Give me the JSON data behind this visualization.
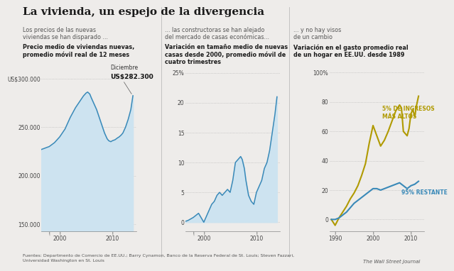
{
  "title": "La vivienda, un espejo de la divergencia",
  "title_fontsize": 11,
  "background_color": "#eeecea",
  "panel1": {
    "subtitle1": "Los precios de las nuevas\nviviendas se han disparado ...",
    "subtitle2": "Precio medio de viviendas nuevas,\npromedio móvil real de 12 meses",
    "ann_title": "Diciembre",
    "ann_val": "US$282.300",
    "yticks": [
      150000,
      200000,
      250000,
      300000
    ],
    "ytick_labels": [
      "150.000",
      "200.000",
      "250.000",
      "US$300.000"
    ],
    "xlim": [
      1996.5,
      2014.5
    ],
    "ylim": [
      143000,
      318000
    ],
    "line_color": "#3989b8",
    "fill_color": "#cde3f0",
    "x": [
      1996,
      1997,
      1997.5,
      1998,
      1998.5,
      1999,
      1999.5,
      2000,
      2000.5,
      2001,
      2001.5,
      2002,
      2002.5,
      2003,
      2003.5,
      2004,
      2004.5,
      2005,
      2005.3,
      2005.7,
      2006,
      2006.5,
      2007,
      2007.5,
      2008,
      2008.5,
      2009,
      2009.3,
      2009.7,
      2010,
      2010.5,
      2011,
      2011.3,
      2011.7,
      2012,
      2012.5,
      2013,
      2013.5,
      2013.9
    ],
    "y": [
      226000,
      228000,
      229000,
      230000,
      232000,
      234000,
      237000,
      240000,
      244000,
      248000,
      254000,
      260000,
      265000,
      270000,
      274000,
      278000,
      282000,
      285000,
      286000,
      284000,
      280000,
      274000,
      268000,
      260000,
      252000,
      244000,
      238000,
      236000,
      235000,
      236000,
      237000,
      239000,
      240000,
      242000,
      244000,
      250000,
      258000,
      268000,
      282300
    ]
  },
  "panel2": {
    "subtitle1": "... las constructoras se han alejado\ndel mercado de casas económicas...",
    "subtitle2": "Variación en tamaño medio de nuevas\ncasas desde 2000, promedio móvil de\ncuatro trimestres",
    "yticks": [
      0,
      5,
      10,
      15,
      20,
      25
    ],
    "ytick_labels": [
      "0",
      "5",
      "10",
      "15",
      "20",
      "25%"
    ],
    "xlim": [
      1996.5,
      2014.5
    ],
    "ylim": [
      -1.5,
      27
    ],
    "line_color": "#3989b8",
    "fill_color": "#cde3f0",
    "x": [
      1996,
      1997,
      1998,
      1999,
      2000,
      2000.5,
      2001,
      2001.5,
      2002,
      2002.5,
      2003,
      2003.5,
      2004,
      2004.5,
      2005,
      2005.5,
      2006,
      2006.5,
      2007,
      2007.3,
      2007.7,
      2008,
      2008.5,
      2009,
      2009.5,
      2010,
      2010.5,
      2011,
      2011.5,
      2012,
      2012.5,
      2013,
      2013.5,
      2013.9
    ],
    "y": [
      0,
      0.3,
      0.8,
      1.5,
      0,
      1,
      2,
      3,
      3.5,
      4.5,
      5,
      4.5,
      5,
      5.5,
      5,
      7,
      10,
      10.5,
      11,
      10.5,
      9,
      7,
      4.5,
      3.5,
      3,
      5,
      6,
      7,
      9,
      10,
      12,
      15,
      18,
      21
    ]
  },
  "panel3": {
    "subtitle1": "... y no hay visos\nde un cambio",
    "subtitle2": "Variación en el gasto promedio real\nde un hogar en EE.UU. desde 1989",
    "yticks": [
      0,
      20,
      40,
      60,
      80,
      100
    ],
    "ytick_labels": [
      "0",
      "20",
      "40",
      "60",
      "80",
      "100%"
    ],
    "xlim": [
      1988.5,
      2013.5
    ],
    "ylim": [
      -8,
      108
    ],
    "line_color_top": "#b09a00",
    "line_color_bot": "#3989b8",
    "label_top": "5% DE INGRESOS\nMÁS ALTOS",
    "label_bot": "95% RESTANTE",
    "x_top": [
      1989,
      1990,
      1991,
      1992,
      1993,
      1994,
      1995,
      1996,
      1997,
      1998,
      1999,
      2000,
      2001,
      2002,
      2003,
      2004,
      2005,
      2006,
      2007,
      2007.5,
      2008,
      2009,
      2009.5,
      2010,
      2010.5,
      2011,
      2011.5,
      2012
    ],
    "y_top": [
      0,
      -4,
      1,
      5,
      9,
      14,
      18,
      23,
      30,
      38,
      52,
      64,
      57,
      50,
      54,
      60,
      67,
      74,
      78,
      76,
      60,
      57,
      62,
      72,
      75,
      70,
      78,
      84
    ],
    "x_bot": [
      1989,
      1990,
      1991,
      1992,
      1993,
      1994,
      1995,
      1996,
      1997,
      1998,
      1999,
      2000,
      2001,
      2002,
      2003,
      2004,
      2005,
      2006,
      2007,
      2008,
      2009,
      2010,
      2011,
      2012
    ],
    "y_bot": [
      0,
      0,
      1,
      3,
      5,
      8,
      11,
      13,
      15,
      17,
      19,
      21,
      21,
      20,
      21,
      22,
      23,
      24,
      25,
      23,
      21,
      23,
      24,
      26
    ]
  },
  "footer": "Fuentes: Departmento de Comercio de EE.UU.; Barry Cynamon, Banco de la Reserva Federal de St. Louis; Steven Fazzari,\nUniversidad Washington en St. Louis",
  "footer_right": "The Wall Street Journal"
}
